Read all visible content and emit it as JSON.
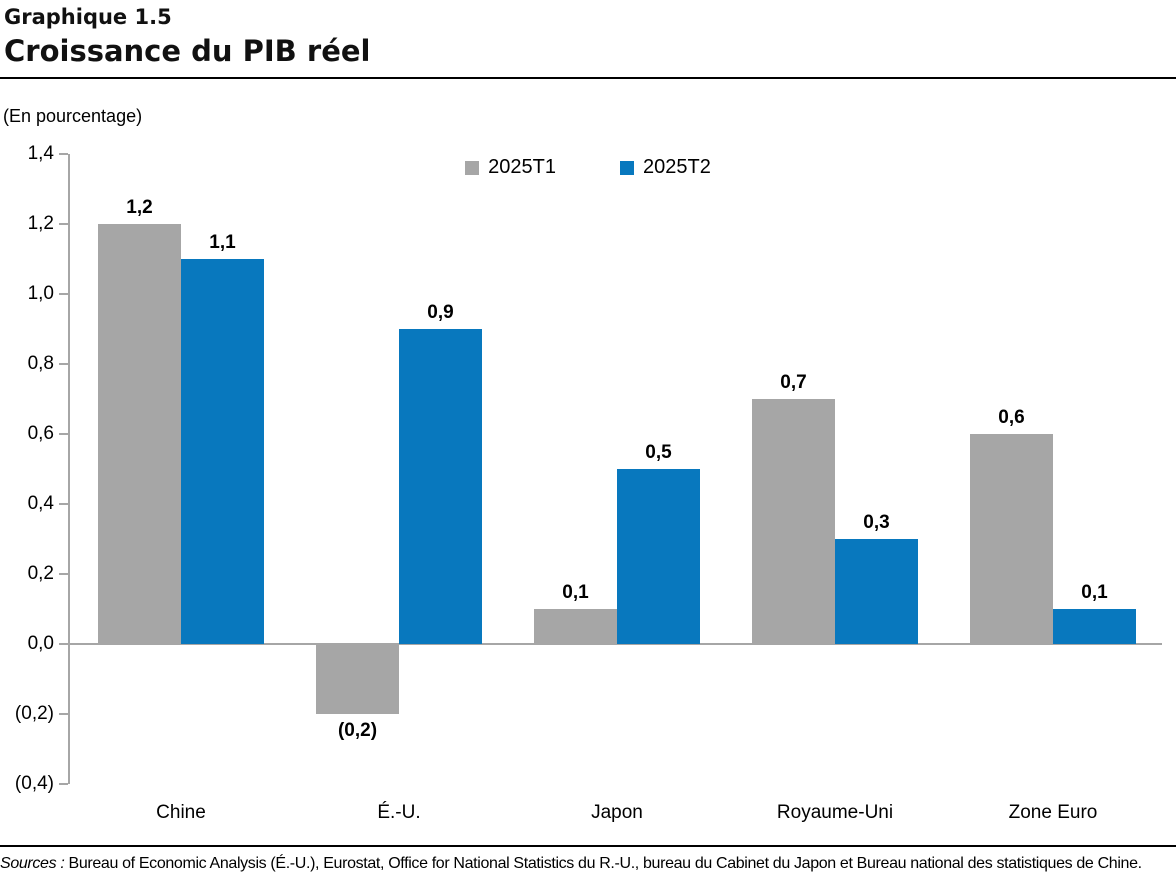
{
  "header": {
    "kicker": "Graphique 1.5",
    "title": "Croissance du PIB réel"
  },
  "unit_label": "(En pourcentage)",
  "chart_data": {
    "type": "bar",
    "title": "Croissance du PIB réel",
    "subtitle": "Graphique 1.5",
    "unit": "(En pourcentage)",
    "categories": [
      "Chine",
      "É.-U.",
      "Japon",
      "Royaume-Uni",
      "Zone Euro"
    ],
    "series": [
      {
        "name": "2025T1",
        "color": "#a6a6a6",
        "values": [
          1.2,
          -0.2,
          0.1,
          0.7,
          0.6
        ],
        "labels": [
          "1,2",
          "(0,2)",
          "0,1",
          "0,7",
          "0,6"
        ]
      },
      {
        "name": "2025T2",
        "color": "#0878be",
        "values": [
          1.1,
          0.9,
          0.5,
          0.3,
          0.1
        ],
        "labels": [
          "1,1",
          "0,9",
          "0,5",
          "0,3",
          "0,1"
        ]
      }
    ],
    "ylim": [
      -0.4,
      1.4
    ],
    "y_ticks": [
      {
        "value": 1.4,
        "label": "1,4"
      },
      {
        "value": 1.2,
        "label": "1,2"
      },
      {
        "value": 1.0,
        "label": "1,0"
      },
      {
        "value": 0.8,
        "label": "0,8"
      },
      {
        "value": 0.6,
        "label": "0,6"
      },
      {
        "value": 0.4,
        "label": "0,4"
      },
      {
        "value": 0.2,
        "label": "0,2"
      },
      {
        "value": 0.0,
        "label": "0,0"
      },
      {
        "value": -0.2,
        "label": "(0,2)"
      },
      {
        "value": -0.4,
        "label": "(0,4)"
      }
    ],
    "grid": false,
    "legend_position": "top-center",
    "axis_color": "#a6a6a6"
  },
  "footer": {
    "sources_label": "Sources :",
    "sources_text": " Bureau of Economic Analysis (É.-U.), Eurostat, Office for National Statistics du R.-U., bureau du Cabinet du Japon et Bureau national des statistiques de Chine."
  }
}
